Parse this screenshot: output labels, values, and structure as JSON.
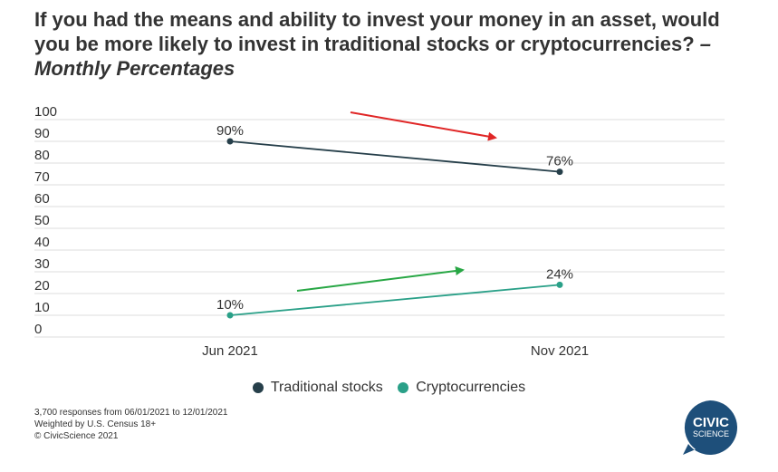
{
  "chart_data": {
    "type": "line",
    "title": "If you had the means and ability to invest your money in an asset, would you be more likely to invest in traditional stocks or cryptocurrencies?",
    "subtitle": "– Monthly Percentages",
    "categories": [
      "Jun 2021",
      "Nov 2021"
    ],
    "ylim": [
      0,
      100
    ],
    "yticks": [
      0,
      10,
      20,
      30,
      40,
      50,
      60,
      70,
      80,
      90,
      100
    ],
    "grid": true,
    "legend_position": "bottom",
    "series": [
      {
        "name": "Traditional stocks",
        "values": [
          90,
          76
        ],
        "labels": [
          "90%",
          "76%"
        ],
        "color": "#263f4a"
      },
      {
        "name": "Cryptocurrencies",
        "values": [
          10,
          24
        ],
        "labels": [
          "10%",
          "24%"
        ],
        "color": "#2aa088"
      }
    ],
    "annotations": [
      {
        "type": "arrow",
        "direction": "down",
        "color": "#e02626"
      },
      {
        "type": "arrow",
        "direction": "up",
        "color": "#28a745"
      }
    ]
  },
  "footer": {
    "line1": "3,700 responses from 06/01/2021 to 12/01/2021",
    "line2": "Weighted by U.S. Census 18+",
    "line3": "© CivicScience 2021"
  },
  "logo": {
    "line1": "CIVIC",
    "line2": "SCIENCE",
    "color": "#1e4f7a"
  }
}
